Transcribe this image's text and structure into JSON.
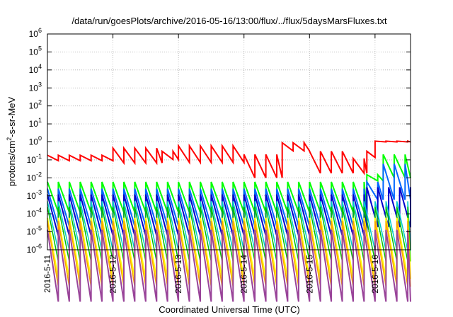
{
  "chart_data": {
    "type": "line",
    "title": "/data/run/goesPlots/archive/2016-05-16/13:00/flux/../flux/5daysMarsFluxes.txt",
    "xlabel": "Coordinated Universal Time (UTC)",
    "ylabel": {
      "prefix": "protons/cm",
      "exponent": "2",
      "suffix": "-s-sr-MeV"
    },
    "y_scale": "log",
    "ylim": [
      1e-06,
      1000000.0
    ],
    "y_tick_base": "10",
    "y_ticks": [
      {
        "exp": "-6",
        "value": 1e-06
      },
      {
        "exp": "-5",
        "value": 1e-05
      },
      {
        "exp": "-4",
        "value": 0.0001
      },
      {
        "exp": "-3",
        "value": 0.001
      },
      {
        "exp": "-2",
        "value": 0.01
      },
      {
        "exp": "-1",
        "value": 0.1
      },
      {
        "exp": "0",
        "value": 1
      },
      {
        "exp": "1",
        "value": 10
      },
      {
        "exp": "2",
        "value": 100
      },
      {
        "exp": "3",
        "value": 1000
      },
      {
        "exp": "4",
        "value": 10000
      },
      {
        "exp": "5",
        "value": 100000
      },
      {
        "exp": "6",
        "value": 1000000
      }
    ],
    "xlim": [
      "2016-05-11 00:00",
      "2016-05-16 13:00"
    ],
    "x_ticks": [
      "2016-5-11",
      "2016-5-12",
      "2016-5-13",
      "2016-5-14",
      "2016-5-15",
      "2016-5-16"
    ],
    "grid": true,
    "sawtooth_period_hours": 4,
    "event_time": "2016-05-15 21:00",
    "series": [
      {
        "color": "#ff0000",
        "thick": true,
        "segments": [
          [
            "2016-05-11 00:00",
            0.18,
            0.5
          ],
          [
            "2016-05-12 00:00",
            0.45,
            0.15
          ],
          [
            "2016-05-12 18:00",
            0.3,
            0.35
          ],
          [
            "2016-05-13 00:00",
            0.6,
            0.12
          ],
          [
            "2016-05-14 00:00",
            0.2,
            0.05
          ],
          [
            "2016-05-14 14:00",
            0.9,
            0.35
          ],
          [
            "2016-05-15 00:00",
            0.3,
            0.06
          ],
          [
            "2016-05-15 16:00",
            0.12,
            0.15
          ],
          [
            "2016-05-15 21:00",
            0.3,
            0.45
          ],
          [
            "2016-05-16 00:00",
            1.1,
            0.9
          ]
        ]
      },
      {
        "color": "#00ff00",
        "thick": true,
        "segments": [
          [
            "2016-05-11 00:00",
            0.006,
            0.02
          ],
          [
            "2016-05-15 21:00",
            0.015,
            0.45
          ],
          [
            "2016-05-16 03:00",
            0.2,
            0.05
          ]
        ]
      },
      {
        "color": "#0066ff",
        "thick": true,
        "segments": [
          [
            "2016-05-11 00:00",
            0.0025,
            0.008
          ],
          [
            "2016-05-15 21:00",
            0.006,
            0.1
          ],
          [
            "2016-05-16 03:00",
            0.06,
            0.01
          ]
        ]
      },
      {
        "color": "#0000cc",
        "thick": true,
        "segments": [
          [
            "2016-05-11 00:00",
            0.0012,
            0.005
          ],
          [
            "2016-05-15 21:00",
            0.003,
            0.006
          ]
        ]
      },
      {
        "color": "#00cccc",
        "thick": false,
        "segments": [
          [
            "2016-05-11 00:00",
            0.0005,
            0.0018
          ]
        ]
      },
      {
        "color": "#00c000",
        "thick": false,
        "segments": [
          [
            "2016-05-11 00:00",
            0.00025,
            0.0009
          ]
        ]
      },
      {
        "color": "#ffff00",
        "thick": true,
        "segments": [
          [
            "2016-05-11 00:00",
            6e-05,
            0.0004
          ]
        ]
      },
      {
        "color": "#ffa000",
        "thick": false,
        "segments": [
          [
            "2016-05-11 00:00",
            4e-05,
            0.00022
          ]
        ]
      },
      {
        "color": "#994499",
        "thick": true,
        "segments": [
          [
            "2016-05-11 00:00",
            1.3e-05,
            0.0001
          ]
        ]
      }
    ]
  }
}
